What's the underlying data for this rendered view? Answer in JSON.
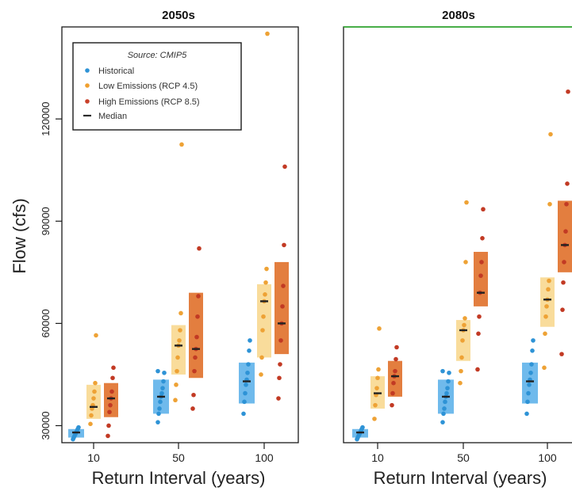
{
  "y_axis_label": "Flow (cfs)",
  "legend": {
    "title": "Source: CMIP5",
    "entries": [
      {
        "label": "Historical",
        "color": "#2e93d6",
        "symbol": "dot"
      },
      {
        "label": "Low Emissions (RCP 4.5)",
        "color": "#f0a030",
        "symbol": "dot"
      },
      {
        "label": "High Emissions (RCP 8.5)",
        "color": "#c9402a",
        "symbol": "dot"
      },
      {
        "label": "Median",
        "color": "#2b2b2b",
        "symbol": "dash"
      }
    ]
  },
  "colors": {
    "historical_box": "#5fb2ea",
    "historical_point": "#2e93d6",
    "low_box": "#f8d890",
    "low_point": "#eea235",
    "high_box": "#e0702a",
    "high_point": "#c23a24",
    "median": "#222222",
    "panel_border_right": "#22aa22"
  },
  "chart_data": [
    {
      "type": "scatter",
      "title": "2050s",
      "xlabel": "Return Interval (years)",
      "ylabel": "Flow (cfs)",
      "categories": [
        "10",
        "50",
        "100"
      ],
      "yticks": [
        30000,
        60000,
        90000,
        120000
      ],
      "ylim": [
        25000,
        147000
      ],
      "legend_position": "top-left",
      "series": [
        {
          "name": "Historical",
          "median": [
            28000,
            38500,
            43000
          ],
          "box": [
            [
              26500,
              29000
            ],
            [
              33500,
              43500
            ],
            [
              36500,
              48500
            ]
          ],
          "points": [
            [
              26000,
              26500,
              27000,
              27500,
              28000,
              28500,
              29000,
              29500
            ],
            [
              31000,
              33500,
              35000,
              37000,
              38500,
              39500,
              41000,
              43000,
              45500,
              46000
            ],
            [
              33500,
              37000,
              39500,
              42000,
              43500,
              45500,
              48000,
              52000,
              55000
            ]
          ]
        },
        {
          "name": "Low Emissions (RCP 4.5)",
          "median": [
            35500,
            53500,
            66500
          ],
          "box": [
            [
              32000,
              42000
            ],
            [
              45000,
              59500
            ],
            [
              50000,
              71500
            ]
          ],
          "points": [
            [
              30500,
              33000,
              35000,
              36000,
              38000,
              40000,
              42500,
              56500
            ],
            [
              37500,
              42000,
              46000,
              50000,
              53500,
              55000,
              58000,
              63000,
              112500
            ],
            [
              45000,
              50000,
              58000,
              62000,
              66500,
              68500,
              72000,
              76000,
              145000
            ]
          ]
        },
        {
          "name": "High Emissions (RCP 8.5)",
          "median": [
            38000,
            52500,
            60000
          ],
          "box": [
            [
              32500,
              42500
            ],
            [
              44000,
              69000
            ],
            [
              51000,
              78000
            ]
          ],
          "points": [
            [
              27000,
              30000,
              34000,
              36000,
              38000,
              40000,
              44000,
              47000
            ],
            [
              35000,
              39000,
              46000,
              50000,
              52500,
              56000,
              62000,
              68000,
              82000
            ],
            [
              38000,
              44000,
              48000,
              55000,
              60000,
              65000,
              71000,
              83000,
              106000
            ]
          ]
        }
      ]
    },
    {
      "type": "scatter",
      "title": "2080s",
      "xlabel": "Return Interval (years)",
      "ylabel": "",
      "categories": [
        "10",
        "50",
        "100"
      ],
      "yticks": [
        30000,
        60000,
        90000,
        120000
      ],
      "ylim": [
        25000,
        147000
      ],
      "series": [
        {
          "name": "Historical",
          "median": [
            28000,
            38500,
            43000
          ],
          "box": [
            [
              26500,
              29000
            ],
            [
              33500,
              43500
            ],
            [
              36500,
              48500
            ]
          ],
          "points": [
            [
              26000,
              26500,
              27000,
              27500,
              28000,
              28500,
              29000,
              29500
            ],
            [
              31000,
              33500,
              35000,
              37000,
              38500,
              39500,
              41000,
              43000,
              45500,
              46000
            ],
            [
              33500,
              37000,
              39500,
              42000,
              43500,
              45500,
              48000,
              52000,
              55000
            ]
          ]
        },
        {
          "name": "Low Emissions (RCP 4.5)",
          "median": [
            39500,
            58000,
            67000
          ],
          "box": [
            [
              35000,
              44500
            ],
            [
              49000,
              61000
            ],
            [
              59000,
              73500
            ]
          ],
          "points": [
            [
              32000,
              36000,
              39000,
              41000,
              44000,
              46500,
              58500
            ],
            [
              42500,
              46000,
              50000,
              55000,
              58000,
              59500,
              61500,
              78000,
              95500
            ],
            [
              47000,
              57000,
              62000,
              65000,
              67000,
              70000,
              72500,
              95000,
              115500
            ]
          ]
        },
        {
          "name": "High Emissions (RCP 8.5)",
          "median": [
            44500,
            69000,
            83000
          ],
          "box": [
            [
              38500,
              49000
            ],
            [
              65000,
              81000
            ],
            [
              75000,
              96000
            ]
          ],
          "points": [
            [
              36000,
              39500,
              42500,
              44500,
              46000,
              49500,
              53000
            ],
            [
              46500,
              57000,
              62000,
              69000,
              74000,
              78000,
              85000,
              93500
            ],
            [
              51000,
              64000,
              72000,
              78000,
              83000,
              87000,
              95000,
              101000,
              128000
            ]
          ]
        }
      ]
    }
  ]
}
